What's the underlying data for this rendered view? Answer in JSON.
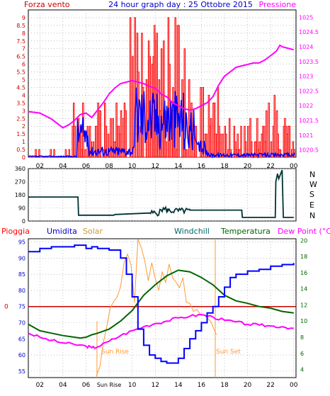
{
  "header": {
    "left_label": "Forza vento",
    "title": "24 hour graph day : 25 Ottobre 2015",
    "right_label": "Pressione"
  },
  "colors": {
    "wind_gust": "#ff0000",
    "wind_avg": "#0000ff",
    "pressure": "#ff00ff",
    "direction": "#003333",
    "humidity": "#0000ff",
    "solar": "#ff9933",
    "windchill": "#006600",
    "temperature": "#006600",
    "dew_point": "#ff00ff",
    "rain": "#cc0000",
    "sun_markers": "#ff9933",
    "grid": "#999999"
  },
  "panel3_header": {
    "rain": "Pioggia",
    "humidity": "Umidita",
    "solar": "Solar",
    "windchill": "Windchill",
    "temperature": "Temperatura",
    "dewpoint": "Dew Point (°C)"
  },
  "sun": {
    "rise_label": "Sun Rise",
    "set_label": "Sun Set",
    "rise_axis_label": "Sun Rise",
    "rise_hour": 6.95,
    "set_hour": 17.2
  },
  "compass": [
    "N",
    "W",
    "S",
    "E",
    "N"
  ],
  "chart_data": [
    {
      "type": "line",
      "name": "wind-pressure",
      "x_ticks": [
        "02",
        "04",
        "06",
        "08",
        "10",
        "12",
        "14",
        "16",
        "18",
        "20",
        "22",
        "00"
      ],
      "xlim": [
        1,
        24.2
      ],
      "y_left_ticks": [
        "0",
        "0.5",
        "1",
        "1.5",
        "2",
        "2.5",
        "3",
        "3.5",
        "4",
        "4.5",
        "5",
        "5.5",
        "6",
        "6.5",
        "7",
        "7.5",
        "8",
        "8.5",
        "9"
      ],
      "ylim_left": [
        0,
        9.5
      ],
      "y_right_ticks": [
        "1020.5",
        "1021",
        "1021.5",
        "1022",
        "1022.5",
        "1023",
        "1023.5",
        "1024",
        "1024.5",
        "1025"
      ],
      "ylim_right": [
        1020.25,
        1025.25
      ],
      "pressure": {
        "x": [
          1,
          2,
          3,
          4,
          4.5,
          5,
          5.5,
          6,
          6.5,
          7,
          7.5,
          8,
          8.5,
          9,
          9.5,
          10,
          10.5,
          11,
          11.5,
          12,
          12.5,
          13,
          13.5,
          14,
          14.5,
          15,
          15.5,
          16,
          16.5,
          17,
          17.5,
          18,
          18.5,
          19,
          19.5,
          20,
          20.5,
          21,
          21.5,
          22,
          22.5,
          22.8,
          23,
          23.5,
          24
        ],
        "values": [
          1021.8,
          1021.75,
          1021.55,
          1021.25,
          1021.35,
          1021.5,
          1021.7,
          1021.75,
          1021.6,
          1021.85,
          1022.1,
          1022.4,
          1022.6,
          1022.75,
          1022.8,
          1022.85,
          1022.8,
          1022.75,
          1022.65,
          1022.6,
          1022.4,
          1022.3,
          1022.1,
          1022.0,
          1021.9,
          1021.85,
          1021.9,
          1022.0,
          1022.1,
          1022.3,
          1022.7,
          1023.0,
          1023.15,
          1023.3,
          1023.35,
          1023.4,
          1023.45,
          1023.45,
          1023.55,
          1023.7,
          1023.85,
          1024.05,
          1024.0,
          1023.95,
          1023.9
        ]
      }
    },
    {
      "type": "line",
      "name": "wind-direction",
      "x_ticks": [
        "02",
        "04",
        "06",
        "08",
        "10",
        "12",
        "14",
        "16",
        "18",
        "20",
        "22",
        "00"
      ],
      "y_ticks": [
        "0",
        "90",
        "180",
        "270",
        "360"
      ],
      "ylim": [
        0,
        360
      ],
      "direction": {
        "x": [
          1,
          5.3,
          5.35,
          8.4,
          8.5,
          11.5,
          12.4,
          13.1,
          15,
          19.5,
          19.55,
          22.4,
          22.45,
          22.6,
          22.7,
          23,
          23.1,
          24
        ],
        "values": [
          165,
          165,
          40,
          40,
          45,
          55,
          80,
          70,
          75,
          75,
          25,
          25,
          270,
          325,
          290,
          350,
          25,
          25
        ]
      }
    },
    {
      "type": "line",
      "name": "humidity-temperature",
      "x_ticks": [
        "02",
        "04",
        "06",
        "Sun Rise",
        "10",
        "12",
        "14",
        "16",
        "18",
        "20",
        "22",
        "00"
      ],
      "y_left_ticks": [
        "55",
        "60",
        "65",
        "70",
        "75",
        "80",
        "85",
        "90",
        "95"
      ],
      "ylim_left": [
        53,
        96
      ],
      "y_right_ticks": [
        "4",
        "6",
        "8",
        "10",
        "12",
        "14",
        "16",
        "18",
        "20"
      ],
      "ylim_right": [
        3,
        20.2
      ],
      "rain_label_value": "0",
      "humidity": {
        "x": [
          1,
          2,
          3,
          4,
          5,
          6,
          6.5,
          7,
          8,
          9,
          9.5,
          10,
          10.5,
          11,
          11.5,
          12,
          12.5,
          13,
          13.5,
          14,
          14.5,
          15,
          15.5,
          16,
          16.5,
          17,
          17.5,
          18,
          18.5,
          19,
          20,
          21,
          22,
          23,
          24
        ],
        "values": [
          92,
          93,
          93.5,
          93.5,
          94,
          93,
          93.5,
          93,
          92.5,
          90,
          85,
          78,
          68,
          63,
          60,
          59,
          58,
          57.5,
          57.5,
          59,
          62,
          65,
          67.5,
          70,
          73,
          75,
          78,
          81,
          84,
          85,
          86,
          86.5,
          87.5,
          88,
          88.5
        ]
      },
      "windchill": {
        "x": [
          1,
          2,
          3,
          4,
          5,
          5.5,
          6,
          6.5,
          7,
          8,
          9,
          10,
          11,
          12,
          13,
          14,
          15,
          16,
          17,
          18,
          19,
          20,
          21,
          22,
          23,
          24
        ],
        "values": [
          9.6,
          8.8,
          8.5,
          8.2,
          8.0,
          7.9,
          8.0,
          8.3,
          8.5,
          9.0,
          10.0,
          11.3,
          13.2,
          14.5,
          15.6,
          16.3,
          16.1,
          15.4,
          14.5,
          13.2,
          12.5,
          12.2,
          11.8,
          11.6,
          11.2,
          11.0
        ]
      },
      "dew_point": {
        "x": [
          1,
          2,
          3,
          4,
          5,
          6,
          6.5,
          7,
          8,
          9,
          10,
          11,
          12,
          13,
          14,
          15,
          16,
          17,
          18,
          19,
          20,
          21,
          22,
          23,
          24
        ],
        "values": [
          8.5,
          8.0,
          7.6,
          7.3,
          7.1,
          6.9,
          6.7,
          6.8,
          7.5,
          8.2,
          8.8,
          9.3,
          9.7,
          10.0,
          10.4,
          10.6,
          10.8,
          10.5,
          10.1,
          9.9,
          9.6,
          9.5,
          9.4,
          9.3,
          9.1
        ]
      },
      "solar": {
        "x": [
          6.9,
          7.2,
          7.5,
          7.8,
          8.1,
          8.4,
          8.7,
          9.0,
          9.3,
          9.6,
          9.9,
          10.2,
          10.5,
          10.8,
          11.1,
          11.4,
          11.7,
          12.0,
          12.3,
          12.6,
          12.9,
          13.2,
          13.5,
          13.8,
          14.1,
          14.4,
          14.7,
          15.0,
          15.3,
          15.6,
          15.9,
          16.2,
          16.5,
          16.8,
          17.1,
          17.3
        ],
        "values": [
          3.5,
          4.5,
          7.5,
          9.5,
          11.5,
          12.5,
          13,
          14,
          17,
          18.5,
          17,
          12,
          20,
          19,
          17.5,
          15,
          17,
          15.5,
          13.5,
          16,
          14.5,
          17,
          15.5,
          15,
          14,
          15.5,
          12.5,
          12,
          11.5,
          11.5,
          11,
          10.5,
          10.5,
          10,
          9,
          8.5
        ]
      }
    }
  ]
}
